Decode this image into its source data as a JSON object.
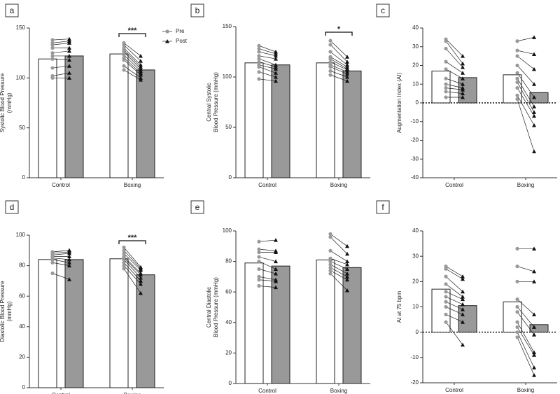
{
  "chart_data": [
    {
      "type": "bar",
      "panel_label": "a",
      "y_label": [
        "Systolic Blood Pressure",
        "(mmHg)"
      ],
      "categories": [
        "Control",
        "Boxing"
      ],
      "ylim": [
        0,
        150
      ],
      "yticks": [
        0,
        50,
        100,
        150
      ],
      "legend": true,
      "significance": {
        "category": 1,
        "label": "***"
      },
      "series": [
        {
          "name": "Pre",
          "color": "#ffffff",
          "marker_color": "#999999",
          "values": [
            119,
            124
          ],
          "points": [
            [
              100,
              102,
              110,
              119,
              122,
              125,
              130,
              133,
              135,
              138
            ],
            [
              108,
              112,
              118,
              120,
              123,
              126,
              128,
              130,
              133,
              135
            ]
          ]
        },
        {
          "name": "Post",
          "color": "#999999",
          "marker_color": "#111111",
          "values": [
            122,
            108
          ],
          "points": [
            [
              100,
              105,
              112,
              118,
              122,
              127,
              130,
              135,
              137,
              139
            ],
            [
              98,
              100,
              103,
              105,
              107,
              109,
              111,
              113,
              117,
              122
            ]
          ]
        }
      ]
    },
    {
      "type": "bar",
      "panel_label": "b",
      "y_label": [
        "Central Systolic",
        "Blood Pressure (mmHg)"
      ],
      "categories": [
        "Control",
        "Boxing"
      ],
      "ylim": [
        0,
        150
      ],
      "yticks": [
        0,
        50,
        100,
        150
      ],
      "significance": {
        "category": 1,
        "label": "*"
      },
      "series": [
        {
          "color": "#ffffff",
          "marker_color": "#999999",
          "values": [
            114,
            114
          ],
          "points": [
            [
              98,
              105,
              110,
              112,
              115,
              118,
              121,
              125,
              128,
              131
            ],
            [
              102,
              106,
              110,
              112,
              115,
              118,
              120,
              125,
              132,
              136
            ]
          ]
        },
        {
          "color": "#999999",
          "marker_color": "#111111",
          "values": [
            112,
            106
          ],
          "points": [
            [
              96,
              100,
              104,
              108,
              110,
              112,
              118,
              121,
              123,
              125
            ],
            [
              96,
              100,
              103,
              105,
              107,
              108,
              110,
              112,
              115,
              120
            ]
          ]
        }
      ]
    },
    {
      "type": "bar",
      "panel_label": "c",
      "y_label": [
        "Augmentation Index (AI)"
      ],
      "categories": [
        "Control",
        "Boxing"
      ],
      "ylim": [
        -40,
        40
      ],
      "yticks": [
        -40,
        -30,
        -20,
        -10,
        0,
        10,
        20,
        30,
        40
      ],
      "zero_line": true,
      "series": [
        {
          "color": "#ffffff",
          "marker_color": "#999999",
          "values": [
            17,
            15
          ],
          "points": [
            [
              3,
              6,
              8,
              10,
              13,
              18,
              22,
              29,
              33,
              34
            ],
            [
              2,
              4,
              8,
              11,
              13,
              16,
              20,
              25,
              28,
              33
            ]
          ]
        },
        {
          "color": "#999999",
          "marker_color": "#111111",
          "values": [
            13.5,
            5.5
          ],
          "points": [
            [
              3,
              5,
              7,
              8,
              10,
              13,
              16,
              19,
              21,
              25
            ],
            [
              -26,
              -12,
              -7,
              -5,
              -2,
              3,
              10,
              18,
              26,
              35
            ]
          ]
        }
      ]
    },
    {
      "type": "bar",
      "panel_label": "d",
      "y_label": [
        "Diastolic Blood Pressure",
        "(mmHg)"
      ],
      "categories": [
        "Control",
        "Boxing"
      ],
      "ylim": [
        0,
        100
      ],
      "yticks": [
        0,
        20,
        40,
        60,
        80,
        100
      ],
      "significance": {
        "category": 1,
        "label": "***"
      },
      "series": [
        {
          "color": "#ffffff",
          "marker_color": "#999999",
          "values": [
            84,
            84.5
          ],
          "points": [
            [
              75,
              82,
              84,
              85,
              86,
              87,
              88,
              89,
              89
            ],
            [
              78,
              80,
              82,
              84,
              85,
              86,
              88,
              90,
              92
            ]
          ]
        },
        {
          "color": "#999999",
          "marker_color": "#111111",
          "values": [
            84,
            74
          ],
          "points": [
            [
              71,
              80,
              82,
              84,
              86,
              88,
              89,
              90,
              90
            ],
            [
              62,
              68,
              70,
              72,
              74,
              75,
              77,
              78,
              79
            ]
          ]
        }
      ]
    },
    {
      "type": "bar",
      "panel_label": "e",
      "y_label": [
        "Central Diastolic",
        "Blood Pressure (mmHg)"
      ],
      "categories": [
        "Control",
        "Boxing"
      ],
      "ylim": [
        0,
        100
      ],
      "yticks": [
        0,
        20,
        40,
        60,
        80,
        100
      ],
      "series": [
        {
          "color": "#ffffff",
          "marker_color": "#999999",
          "values": [
            79,
            81
          ],
          "points": [
            [
              64,
              68,
              70,
              75,
              80,
              83,
              86,
              88,
              93
            ],
            [
              72,
              74,
              76,
              78,
              80,
              82,
              87,
              96,
              98
            ]
          ]
        },
        {
          "color": "#999999",
          "marker_color": "#111111",
          "values": [
            77,
            76
          ],
          "points": [
            [
              63,
              67,
              68,
              72,
              75,
              80,
              86,
              87,
              94
            ],
            [
              61,
              68,
              70,
              72,
              75,
              78,
              80,
              85,
              90
            ]
          ]
        }
      ]
    },
    {
      "type": "bar",
      "panel_label": "f",
      "y_label": [
        "AI at 75 bpm"
      ],
      "categories": [
        "Control",
        "Boxing"
      ],
      "ylim": [
        -20,
        40
      ],
      "yticks": [
        -20,
        -10,
        0,
        10,
        20,
        30,
        40
      ],
      "zero_line": true,
      "series": [
        {
          "color": "#ffffff",
          "marker_color": "#999999",
          "values": [
            17,
            12
          ],
          "points": [
            [
              4,
              7,
              10,
              12,
              14,
              16,
              19,
              22,
              25,
              26
            ],
            [
              -2,
              0,
              2,
              4,
              8,
              10,
              13,
              20,
              26,
              33
            ]
          ]
        },
        {
          "color": "#999999",
          "marker_color": "#111111",
          "values": [
            10.5,
            3
          ],
          "points": [
            [
              -5,
              4,
              7,
              9,
              11,
              13,
              14,
              16,
              21,
              22
            ],
            [
              -17,
              -14,
              -9,
              -8,
              -1,
              2,
              7,
              20,
              24,
              33
            ]
          ]
        }
      ]
    }
  ]
}
